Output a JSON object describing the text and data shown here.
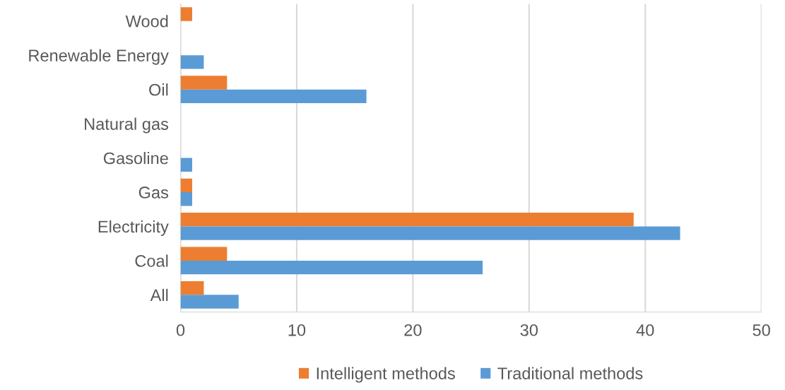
{
  "chart_data": {
    "type": "bar",
    "orientation": "horizontal",
    "categories": [
      "Wood",
      "Renewable Energy",
      "Oil",
      "Natural gas",
      "Gasoline",
      "Gas",
      "Electricity",
      "Coal",
      "All"
    ],
    "series": [
      {
        "name": "Intelligent methods",
        "color": "#ed7d31",
        "values": [
          1,
          0,
          4,
          0,
          0,
          1,
          39,
          4,
          2
        ]
      },
      {
        "name": "Traditional methods",
        "color": "#5b9bd5",
        "values": [
          0,
          2,
          16,
          0,
          1,
          1,
          43,
          26,
          5
        ]
      }
    ],
    "xlim": [
      0,
      50
    ],
    "xticks": [
      0,
      10,
      20,
      30,
      40,
      50
    ],
    "grid": "x",
    "legend": "bottom"
  }
}
